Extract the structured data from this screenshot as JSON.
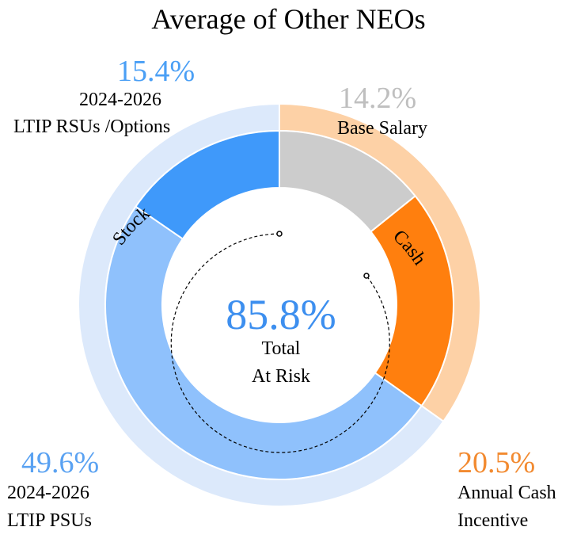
{
  "chart_data": {
    "type": "pie",
    "title": "Average of Other NEOs",
    "center": {
      "value": "85.8%",
      "line1": "Total",
      "line2": "At Risk"
    },
    "outer_ring": [
      {
        "name": "Cash",
        "value": 34.7,
        "color": "#fdd1a6"
      },
      {
        "name": "Stock",
        "value": 65.0,
        "color": "#dce9fb"
      }
    ],
    "inner_ring": [
      {
        "name": "Base Salary",
        "line1": "Base Salary",
        "line2": "",
        "value": 14.2,
        "pct_label": "14.2%",
        "color": "#cccccc",
        "label_color": "#bfbfbf"
      },
      {
        "name": "Annual Cash Incentive",
        "line1": "Annual Cash",
        "line2": "Incentive",
        "value": 20.5,
        "pct_label": "20.5%",
        "color": "#ff7f0e",
        "label_color": "#f28a30"
      },
      {
        "name": "2024-2026 LTIP PSUs",
        "line1": "2024-2026",
        "line2": "LTIP PSUs",
        "value": 49.6,
        "pct_label": "49.6%",
        "color": "#8fc1fc",
        "label_color": "#5aa2f2"
      },
      {
        "name": "2024-2026 LTIP RSUs /Options",
        "line1": "2024-2026",
        "line2": "LTIP RSUs /Options",
        "value": 15.4,
        "pct_label": "15.4%",
        "color": "#3f99fa",
        "label_color": "#4a9ff5"
      }
    ]
  },
  "colors": {
    "center_value": "#3d8fef"
  }
}
